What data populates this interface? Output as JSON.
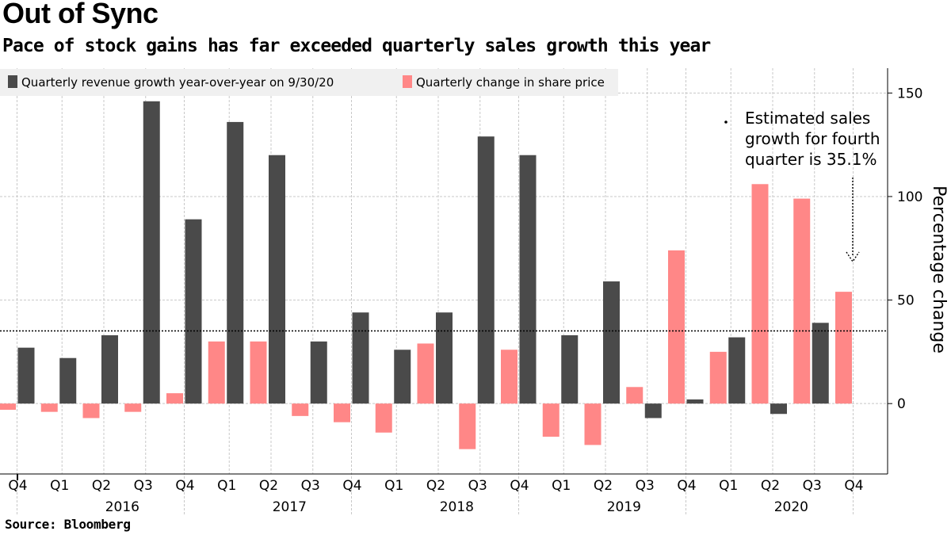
{
  "title": "Out of Sync",
  "subtitle": "Pace of stock gains has far exceeded quarterly sales growth this year",
  "source": "Source: Bloomberg",
  "colors": {
    "revenue": "#4a4a4a",
    "share_price": "#ff8787",
    "grid": "#c8c8c8",
    "legend_bg": "#f0f0f0"
  },
  "chart_data": {
    "type": "bar",
    "categories": [
      "Q4",
      "Q1",
      "Q2",
      "Q3",
      "Q4",
      "Q1",
      "Q2",
      "Q3",
      "Q4",
      "Q1",
      "Q2",
      "Q3",
      "Q4",
      "Q1",
      "Q2",
      "Q3",
      "Q4",
      "Q1",
      "Q2",
      "Q3",
      "Q4"
    ],
    "years": [
      {
        "label": "2016",
        "start": 1,
        "end": 4
      },
      {
        "label": "2017",
        "start": 5,
        "end": 8
      },
      {
        "label": "2018",
        "start": 9,
        "end": 12
      },
      {
        "label": "2019",
        "start": 13,
        "end": 16
      },
      {
        "label": "2020",
        "start": 17,
        "end": 20
      }
    ],
    "series": [
      {
        "name": "Quarterly change in share price",
        "color": "#ff8787",
        "values": [
          -3,
          -4,
          -7,
          -4,
          5,
          30,
          30,
          -6,
          -9,
          -14,
          29,
          -22,
          26,
          -16,
          -20,
          8,
          74,
          25,
          106,
          99,
          54
        ]
      },
      {
        "name": "Quarterly revenue growth year-over-year on 9/30/20",
        "color": "#4a4a4a",
        "values": [
          27,
          22,
          33,
          146,
          89,
          136,
          120,
          30,
          44,
          26,
          44,
          129,
          120,
          33,
          59,
          -7,
          2,
          32,
          -5,
          39,
          null
        ]
      }
    ],
    "legend": [
      {
        "label": "Quarterly revenue growth year-over-year on 9/30/20",
        "color": "#4a4a4a"
      },
      {
        "label": "Quarterly change in share price",
        "color": "#ff8787"
      }
    ],
    "reference_line": {
      "value": 35.1
    },
    "annotation": "Estimated sales growth for fourth quarter is 35.1%",
    "annotation_lines": [
      "Estimated sales",
      "growth for fourth",
      "quarter is 35.1%"
    ],
    "yticks": [
      0,
      50,
      100,
      150
    ],
    "ylim": [
      -34,
      162
    ],
    "ylabel": "Percentage change",
    "xlabel": ""
  }
}
